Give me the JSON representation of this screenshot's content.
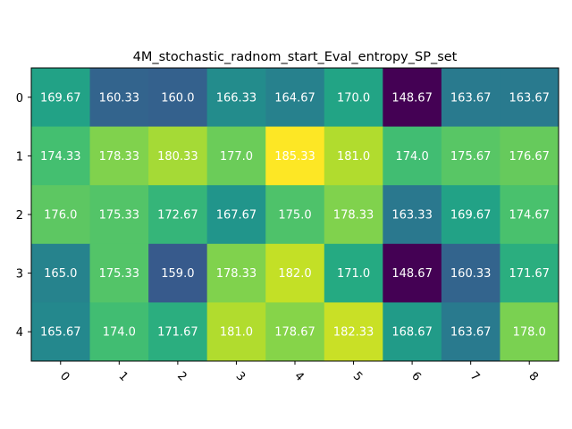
{
  "chart_data": {
    "type": "heatmap",
    "title": "4M_stochastic_radnom_start_Eval_entropy_SP_set",
    "xlabel": "",
    "ylabel": "",
    "x_tick_labels": [
      "0",
      "1",
      "2",
      "3",
      "4",
      "5",
      "6",
      "7",
      "8"
    ],
    "y_tick_labels": [
      "0",
      "1",
      "2",
      "3",
      "4"
    ],
    "colormap": "viridis",
    "value_range": [
      148.67,
      185.33
    ],
    "cell_labels": [
      [
        "169.67",
        "160.33",
        "160.0",
        "166.33",
        "164.67",
        "170.0",
        "148.67",
        "163.67",
        "163.67"
      ],
      [
        "174.33",
        "178.33",
        "180.33",
        "177.0",
        "185.33",
        "181.0",
        "174.0",
        "175.67",
        "176.67"
      ],
      [
        "176.0",
        "175.33",
        "172.67",
        "167.67",
        "175.0",
        "178.33",
        "163.33",
        "169.67",
        "174.67"
      ],
      [
        "165.0",
        "175.33",
        "159.0",
        "178.33",
        "182.0",
        "171.0",
        "148.67",
        "160.33",
        "171.67"
      ],
      [
        "165.67",
        "174.0",
        "171.67",
        "181.0",
        "178.67",
        "182.33",
        "168.67",
        "163.67",
        "178.0"
      ]
    ],
    "values": [
      [
        169.67,
        160.33,
        160.0,
        166.33,
        164.67,
        170.0,
        148.67,
        163.67,
        163.67
      ],
      [
        174.33,
        178.33,
        180.33,
        177.0,
        185.33,
        181.0,
        174.0,
        175.67,
        176.67
      ],
      [
        176.0,
        175.33,
        172.67,
        167.67,
        175.0,
        178.33,
        163.33,
        169.67,
        174.67
      ],
      [
        165.0,
        175.33,
        159.0,
        178.33,
        182.0,
        171.0,
        148.67,
        160.33,
        171.67
      ],
      [
        165.67,
        174.0,
        171.67,
        181.0,
        178.67,
        182.33,
        168.67,
        163.67,
        178.0
      ]
    ],
    "colorbar": false,
    "grid": false
  }
}
